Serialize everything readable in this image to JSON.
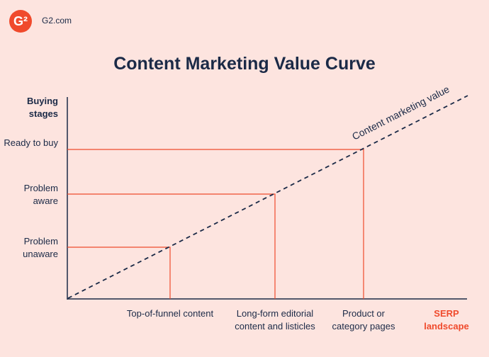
{
  "brand": {
    "logo_text": "G²",
    "site": "G2.com"
  },
  "title": "Content Marketing Value Curve",
  "y_axis": {
    "title": "Buying stages",
    "levels": [
      "Ready to buy",
      "Problem aware",
      "Problem unaware"
    ]
  },
  "x_axis": {
    "title": "SERP landscape",
    "levels": [
      "Top-of-funnel content",
      "Long-form editorial content and listicles",
      "Product or category pages"
    ]
  },
  "curve_label": "Content marketing value",
  "colors": {
    "background": "#fde4df",
    "text": "#1b2a47",
    "accent": "#f04a2c"
  }
}
